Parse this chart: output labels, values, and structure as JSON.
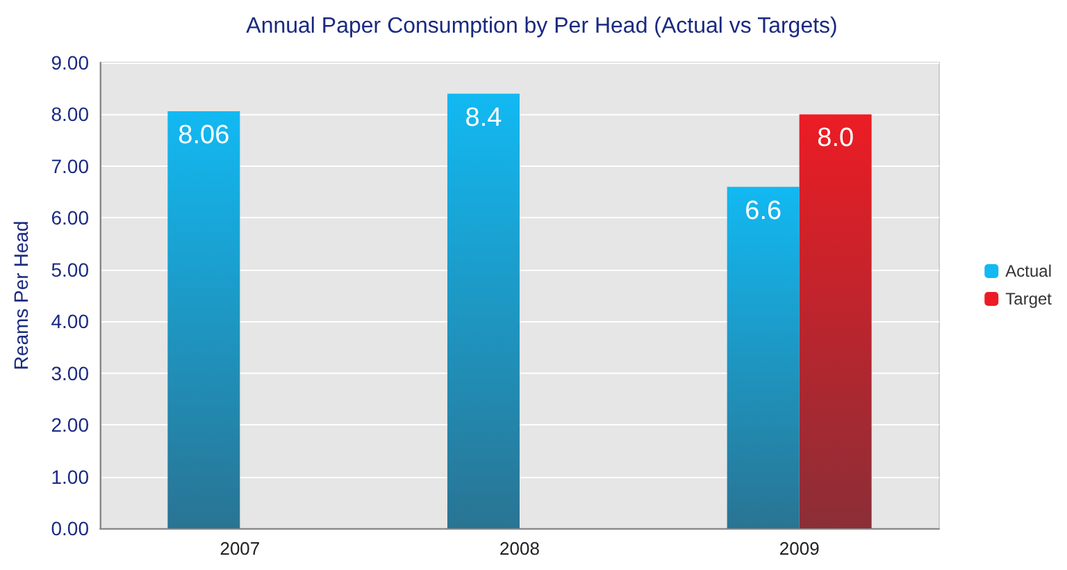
{
  "chart_data": {
    "type": "bar",
    "title": "Annual Paper Consumption by Per Head (Actual vs Targets)",
    "ylabel": "Reams Per Head",
    "categories": [
      "2007",
      "2008",
      "2009"
    ],
    "series": [
      {
        "name": "Actual",
        "color": "#12b9f2",
        "values": [
          8.06,
          8.4,
          6.6
        ],
        "value_labels": [
          "8.06",
          "8.4",
          "6.6"
        ]
      },
      {
        "name": "Target",
        "color": "#ec1c24",
        "values": [
          null,
          null,
          8.0
        ],
        "value_labels": [
          null,
          null,
          "8.0"
        ]
      }
    ],
    "ylim": [
      0,
      9
    ],
    "yticks": [
      {
        "value": 0,
        "label": "0.00"
      },
      {
        "value": 1,
        "label": "1.00"
      },
      {
        "value": 2,
        "label": "2.00"
      },
      {
        "value": 3,
        "label": "3.00"
      },
      {
        "value": 4,
        "label": "4.00"
      },
      {
        "value": 5,
        "label": "5.00"
      },
      {
        "value": 6,
        "label": "6.00"
      },
      {
        "value": 7,
        "label": "7.00"
      },
      {
        "value": 8,
        "label": "8.00"
      },
      {
        "value": 9,
        "label": "9.00"
      }
    ],
    "grid": "y",
    "legend": "right"
  }
}
